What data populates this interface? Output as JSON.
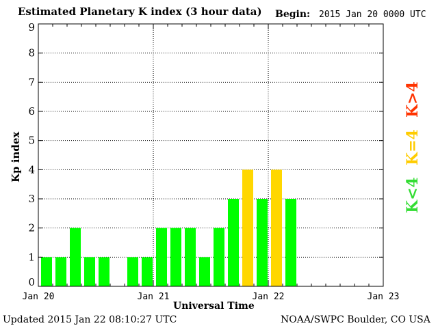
{
  "chart_data": {
    "type": "bar",
    "title": "Estimated Planetary K index (3 hour data)",
    "begin_label": "Begin:",
    "begin_value": "2015 Jan 20 0000 UTC",
    "xlabel": "Universal Time",
    "ylabel": "Kp index",
    "ylim": [
      0,
      9
    ],
    "yticks": [
      0,
      1,
      2,
      3,
      4,
      5,
      6,
      7,
      8,
      9
    ],
    "xlim_hours": [
      0,
      72
    ],
    "xticks": [
      {
        "hour": 0,
        "label": "Jan 20"
      },
      {
        "hour": 24,
        "label": "Jan 21"
      },
      {
        "hour": 48,
        "label": "Jan 22"
      },
      {
        "hour": 72,
        "label": "Jan 23"
      }
    ],
    "interval_hours": 3,
    "values": [
      1,
      1,
      2,
      1,
      1,
      null,
      1,
      1,
      2,
      2,
      2,
      1,
      2,
      3,
      4,
      3,
      4,
      3
    ],
    "grid": true,
    "colors": {
      "below": "#00ff00",
      "equal": "#ffd700",
      "above": "#ff2000"
    },
    "legend": [
      {
        "label": "K<4",
        "color": "#33dd33"
      },
      {
        "label": "K=4",
        "color": "#ffcc00"
      },
      {
        "label": "K>4",
        "color": "#ff3300"
      }
    ]
  },
  "footer": {
    "updated": "Updated 2015 Jan 22 08:10:27 UTC",
    "source": "NOAA/SWPC Boulder, CO USA"
  }
}
